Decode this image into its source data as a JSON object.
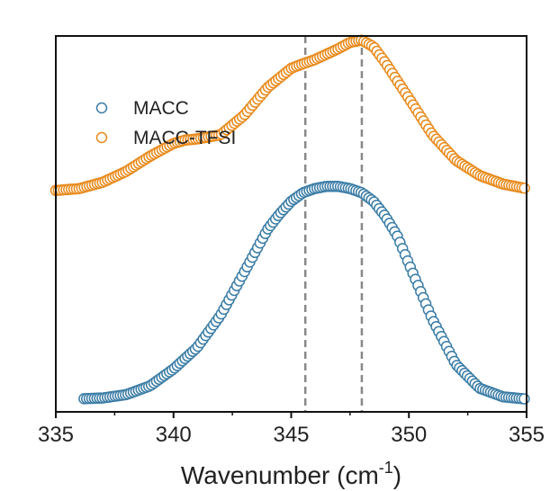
{
  "chart_data": {
    "type": "scatter",
    "xlabel": "Wavenumber (cm",
    "xlabel_sup": "-1",
    "xlabel_close": ")",
    "ylabel": "",
    "xlim": [
      335,
      355
    ],
    "ylim": [
      0,
      1
    ],
    "xticks": [
      335,
      340,
      345,
      350,
      355
    ],
    "yticks_visible": false,
    "grid": false,
    "legend_position": "top-left",
    "reference_lines_x": [
      345.6,
      348.0
    ],
    "series": [
      {
        "name": "MACC",
        "color": "#3a7ca5",
        "marker": "open-circle",
        "x": [
          336.2,
          337.0,
          338.0,
          339.0,
          340.0,
          341.0,
          342.0,
          343.0,
          344.0,
          344.5,
          345.0,
          345.5,
          346.0,
          346.5,
          347.0,
          347.5,
          348.0,
          348.5,
          349.0,
          349.5,
          350.0,
          350.5,
          351.0,
          352.0,
          353.0,
          354.0,
          355.0
        ],
        "y": [
          0.035,
          0.037,
          0.046,
          0.069,
          0.114,
          0.171,
          0.257,
          0.371,
          0.486,
          0.526,
          0.56,
          0.583,
          0.594,
          0.6,
          0.6,
          0.594,
          0.583,
          0.56,
          0.52,
          0.469,
          0.394,
          0.32,
          0.246,
          0.126,
          0.063,
          0.04,
          0.034
        ]
      },
      {
        "name": "MACC-TFSI",
        "color": "#e8891a",
        "marker": "open-circle",
        "x": [
          335.0,
          336.0,
          337.0,
          338.0,
          339.0,
          340.0,
          340.5,
          341.0,
          342.0,
          343.0,
          344.0,
          345.0,
          345.5,
          346.0,
          347.0,
          347.5,
          348.0,
          348.5,
          349.0,
          350.0,
          351.0,
          352.0,
          353.0,
          354.0,
          355.0
        ],
        "y": [
          0.589,
          0.594,
          0.611,
          0.64,
          0.68,
          0.714,
          0.723,
          0.726,
          0.737,
          0.789,
          0.863,
          0.914,
          0.926,
          0.937,
          0.966,
          0.983,
          0.989,
          0.971,
          0.929,
          0.834,
          0.737,
          0.669,
          0.629,
          0.606,
          0.594
        ]
      }
    ]
  }
}
